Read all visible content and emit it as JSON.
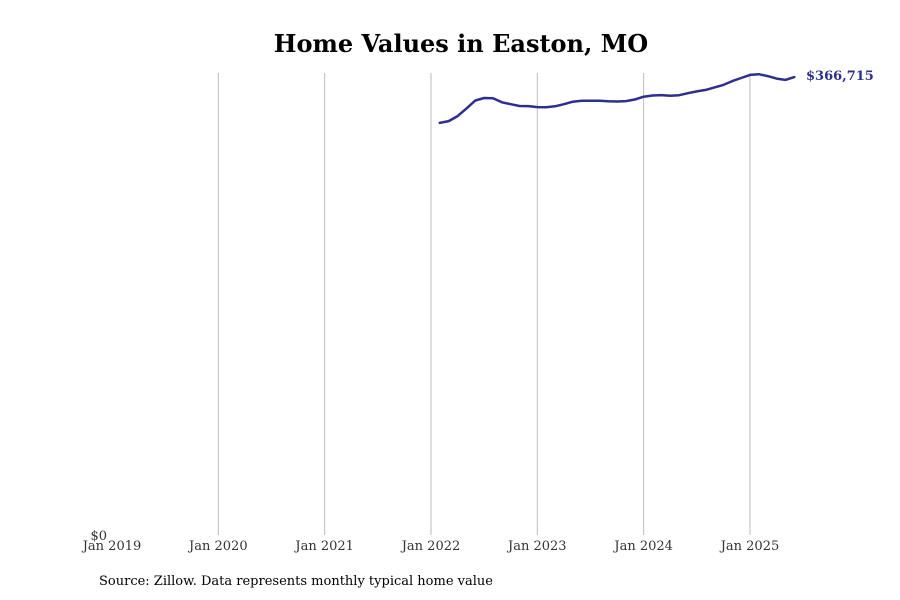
{
  "chart_data": {
    "type": "line",
    "title": "Home Values in Easton, MO",
    "xlabel": "",
    "ylabel": "",
    "x_ticks": [
      "Jan 2019",
      "Jan 2020",
      "Jan 2021",
      "Jan 2022",
      "Jan 2023",
      "Jan 2024",
      "Jan 2025"
    ],
    "y_tick_label": "$0",
    "xlim": [
      "2019-01",
      "2025-08"
    ],
    "ylim": [
      0,
      370000
    ],
    "grid": "vertical",
    "line_color": "#2e2e8f",
    "end_label": "$366,715",
    "series": [
      {
        "x": [
          "2022-02",
          "2022-03",
          "2022-04",
          "2022-05",
          "2022-06",
          "2022-07",
          "2022-08",
          "2022-09",
          "2022-10",
          "2022-11",
          "2022-12",
          "2023-01",
          "2023-02",
          "2023-03",
          "2023-04",
          "2023-05",
          "2023-06",
          "2023-07",
          "2023-08",
          "2023-09",
          "2023-10",
          "2023-11",
          "2023-12",
          "2024-01",
          "2024-02",
          "2024-03",
          "2024-04",
          "2024-05",
          "2024-06",
          "2024-07",
          "2024-08",
          "2024-09",
          "2024-10",
          "2024-11",
          "2024-12",
          "2025-01",
          "2025-02",
          "2025-03",
          "2025-04",
          "2025-05",
          "2025-06"
        ],
        "values": [
          330000,
          331500,
          335500,
          341500,
          348000,
          350000,
          349800,
          346500,
          345000,
          343600,
          343500,
          342700,
          342600,
          343300,
          345000,
          347000,
          347700,
          347700,
          347700,
          347300,
          347200,
          347500,
          348800,
          351000,
          352000,
          352300,
          351800,
          352200,
          353800,
          355300,
          356500,
          358500,
          360500,
          363500,
          366000,
          368500,
          369000,
          367500,
          365500,
          364500,
          366715
        ]
      }
    ]
  },
  "source": "Source: Zillow. Data represents monthly typical home value"
}
